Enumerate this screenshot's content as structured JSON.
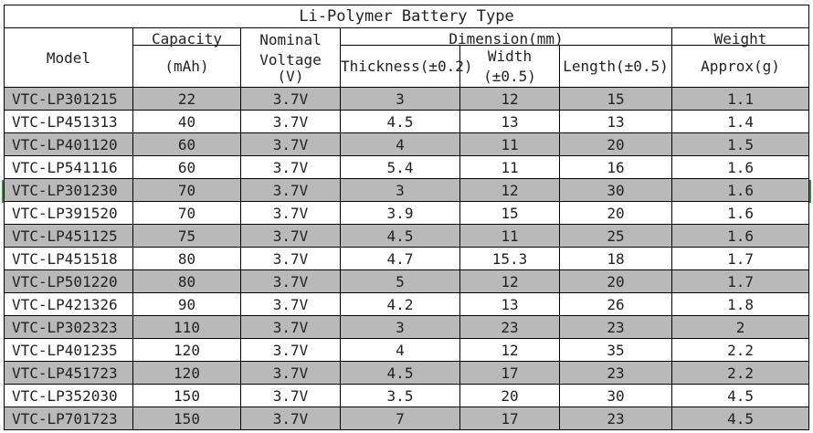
{
  "title": "Li-Polymer Battery Type",
  "headers": {
    "model": "Model",
    "capacity": "Capacity",
    "capacity_unit": "(mAh)",
    "nominal_voltage_line1": "Nominal",
    "nominal_voltage_line2": "Voltage",
    "nominal_voltage_line3": "(V)",
    "dimension": "Dimension(mm)",
    "thickness": "Thickness(±0.2)",
    "width": "Width (±0.5)",
    "length": "Length(±0.5)",
    "weight": "Weight",
    "weight_unit": "Approx(g)"
  },
  "rows": [
    {
      "model": "VTC-LP301215",
      "capacity": "22",
      "voltage": "3.7V",
      "thickness": "3",
      "width": "12",
      "length": "15",
      "weight": "1.1",
      "shaded": true
    },
    {
      "model": "VTC-LP451313",
      "capacity": "40",
      "voltage": "3.7V",
      "thickness": "4.5",
      "width": "13",
      "length": "13",
      "weight": "1.4",
      "shaded": false
    },
    {
      "model": "VTC-LP401120",
      "capacity": "60",
      "voltage": "3.7V",
      "thickness": "4",
      "width": "11",
      "length": "20",
      "weight": "1.5",
      "shaded": true
    },
    {
      "model": "VTC-LP541116",
      "capacity": "60",
      "voltage": "3.7V",
      "thickness": "5.4",
      "width": "11",
      "length": "16",
      "weight": "1.6",
      "shaded": false
    },
    {
      "model": "VTC-LP301230",
      "capacity": "70",
      "voltage": "3.7V",
      "thickness": "3",
      "width": "12",
      "length": "30",
      "weight": "1.6",
      "shaded": true
    },
    {
      "model": "VTC-LP391520",
      "capacity": "70",
      "voltage": "3.7V",
      "thickness": "3.9",
      "width": "15",
      "length": "20",
      "weight": "1.6",
      "shaded": false
    },
    {
      "model": "VTC-LP451125",
      "capacity": "75",
      "voltage": "3.7V",
      "thickness": "4.5",
      "width": "11",
      "length": "25",
      "weight": "1.6",
      "shaded": true
    },
    {
      "model": "VTC-LP451518",
      "capacity": "80",
      "voltage": "3.7V",
      "thickness": "4.7",
      "width": "15.3",
      "length": "18",
      "weight": "1.7",
      "shaded": false
    },
    {
      "model": "VTC-LP501220",
      "capacity": "80",
      "voltage": "3.7V",
      "thickness": "5",
      "width": "12",
      "length": "20",
      "weight": "1.7",
      "shaded": true
    },
    {
      "model": "VTC-LP421326",
      "capacity": "90",
      "voltage": "3.7V",
      "thickness": "4.2",
      "width": "13",
      "length": "26",
      "weight": "1.8",
      "shaded": false
    },
    {
      "model": "VTC-LP302323",
      "capacity": "110",
      "voltage": "3.7V",
      "thickness": "3",
      "width": "23",
      "length": "23",
      "weight": "2",
      "shaded": true
    },
    {
      "model": "VTC-LP401235",
      "capacity": "120",
      "voltage": "3.7V",
      "thickness": "4",
      "width": "12",
      "length": "35",
      "weight": "2.2",
      "shaded": false
    },
    {
      "model": "VTC-LP451723",
      "capacity": "120",
      "voltage": "3.7V",
      "thickness": "4.5",
      "width": "17",
      "length": "23",
      "weight": "2.2",
      "shaded": true
    },
    {
      "model": "VTC-LP352030",
      "capacity": "150",
      "voltage": "3.7V",
      "thickness": "3.5",
      "width": "20",
      "length": "30",
      "weight": "4.5",
      "shaded": false
    },
    {
      "model": "VTC-LP701723",
      "capacity": "150",
      "voltage": "3.7V",
      "thickness": "7",
      "width": "17",
      "length": "23",
      "weight": "4.5",
      "shaded": true
    }
  ],
  "colors": {
    "shade": "#b9b9b9",
    "grid": "#000000",
    "selection": "#2f8f3a"
  }
}
